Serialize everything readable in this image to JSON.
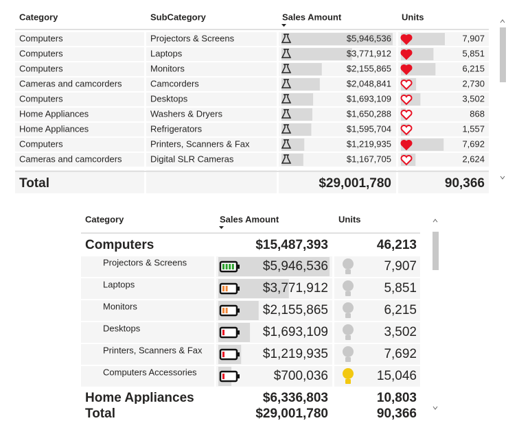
{
  "table1": {
    "headers": [
      "Category",
      "SubCategory",
      "Sales Amount",
      "Units"
    ],
    "rows": [
      {
        "category": "Computers",
        "subcategory": "Projectors & Screens",
        "sales": {
          "value": 5946536,
          "label": "$5,946,536"
        },
        "units": {
          "value": 7907,
          "label": "7,907"
        }
      },
      {
        "category": "Computers",
        "subcategory": "Laptops",
        "sales": {
          "value": 3771912,
          "label": "$3,771,912"
        },
        "units": {
          "value": 5851,
          "label": "5,851"
        }
      },
      {
        "category": "Computers",
        "subcategory": "Monitors",
        "sales": {
          "value": 2155865,
          "label": "$2,155,865"
        },
        "units": {
          "value": 6215,
          "label": "6,215"
        }
      },
      {
        "category": "Cameras and camcorders",
        "subcategory": "Camcorders",
        "sales": {
          "value": 2048841,
          "label": "$2,048,841"
        },
        "units": {
          "value": 2730,
          "label": "2,730"
        }
      },
      {
        "category": "Computers",
        "subcategory": "Desktops",
        "sales": {
          "value": 1693109,
          "label": "$1,693,109"
        },
        "units": {
          "value": 3502,
          "label": "3,502"
        }
      },
      {
        "category": "Home Appliances",
        "subcategory": "Washers & Dryers",
        "sales": {
          "value": 1650288,
          "label": "$1,650,288"
        },
        "units": {
          "value": 868,
          "label": "868"
        }
      },
      {
        "category": "Home Appliances",
        "subcategory": "Refrigerators",
        "sales": {
          "value": 1595704,
          "label": "$1,595,704"
        },
        "units": {
          "value": 1557,
          "label": "1,557"
        }
      },
      {
        "category": "Computers",
        "subcategory": "Printers, Scanners & Fax",
        "sales": {
          "value": 1219935,
          "label": "$1,219,935"
        },
        "units": {
          "value": 7692,
          "label": "7,692"
        }
      },
      {
        "category": "Cameras and camcorders",
        "subcategory": "Digital SLR Cameras",
        "sales": {
          "value": 1167705,
          "label": "$1,167,705"
        },
        "units": {
          "value": 2624,
          "label": "2,624"
        }
      }
    ],
    "total": {
      "label": "Total",
      "sales": "$29,001,780",
      "units": "90,366"
    }
  },
  "table2": {
    "headers": [
      "Category",
      "Sales Amount",
      "Units"
    ],
    "groups": [
      {
        "name": "Computers",
        "sales": "$15,487,393",
        "units": "46,213",
        "rows": [
          {
            "subcategory": "Projectors & Screens",
            "sales": {
              "value": 5946536,
              "label": "$5,946,536"
            },
            "units": "7,907"
          },
          {
            "subcategory": "Laptops",
            "sales": {
              "value": 3771912,
              "label": "$3,771,912"
            },
            "units": "5,851"
          },
          {
            "subcategory": "Monitors",
            "sales": {
              "value": 2155865,
              "label": "$2,155,865"
            },
            "units": "6,215"
          },
          {
            "subcategory": "Desktops",
            "sales": {
              "value": 1693109,
              "label": "$1,693,109"
            },
            "units": "3,502"
          },
          {
            "subcategory": "Printers, Scanners & Fax",
            "sales": {
              "value": 1219935,
              "label": "$1,219,935"
            },
            "units": "7,692"
          },
          {
            "subcategory": "Computers Accessories",
            "sales": {
              "value": 700036,
              "label": "$700,036"
            },
            "units": "15,046"
          }
        ]
      },
      {
        "name": "Home Appliances",
        "sales": "$6,336,803",
        "units": "10,803",
        "rows": []
      }
    ],
    "total": {
      "label": "Total",
      "sales": "$29,001,780",
      "units": "90,366"
    }
  }
}
